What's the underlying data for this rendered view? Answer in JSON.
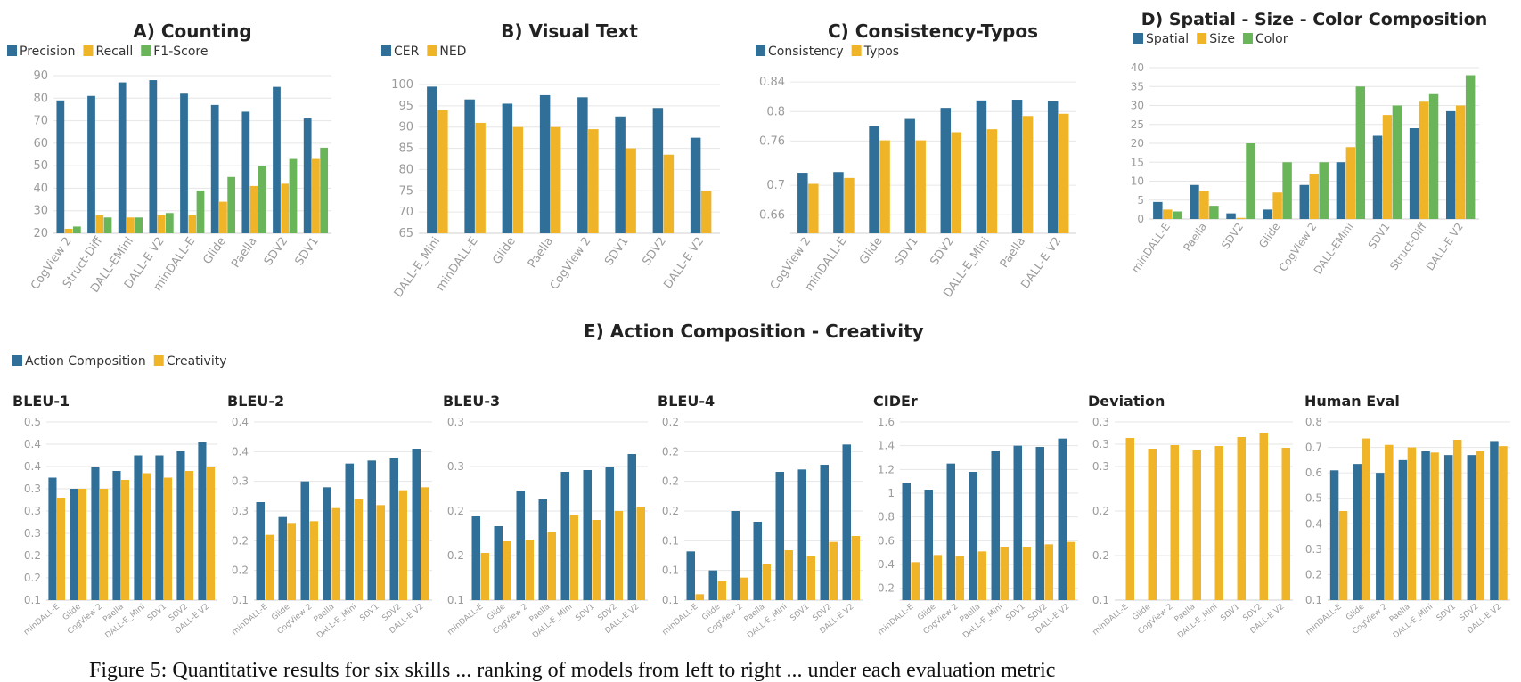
{
  "colors": {
    "blue": "#2f6f98",
    "yellow": "#f0b429",
    "green": "#6ab45a"
  },
  "section_e_title": "E) Action Composition - Creativity",
  "caption": "Figure 5: Quantitative results for six skills ... ranking of models from left to right ... under each evaluation metric",
  "chart_data": [
    {
      "id": "A",
      "type": "bar",
      "title": "A) Counting",
      "series_names": [
        "Precision",
        "Recall",
        "F1-Score"
      ],
      "categories": [
        "CogView 2",
        "Struct-Diff",
        "DALL-EMini",
        "DALL-E V2",
        "minDALL-E",
        "Glide",
        "Paella",
        "SDV2",
        "SDV1"
      ],
      "series": [
        [
          79,
          81,
          87,
          88,
          82,
          77,
          74,
          85,
          71
        ],
        [
          22,
          28,
          27,
          28,
          28,
          34,
          41,
          42,
          53
        ],
        [
          23,
          27,
          27,
          29,
          39,
          45,
          50,
          53,
          58
        ]
      ],
      "ylim": [
        20,
        90
      ],
      "ticks": [
        20,
        30,
        40,
        50,
        60,
        70,
        80,
        90
      ]
    },
    {
      "id": "B",
      "type": "bar",
      "title": "B) Visual Text",
      "series_names": [
        "CER",
        "NED"
      ],
      "categories": [
        "DALL-E_Mini",
        "minDALL-E",
        "Glide",
        "Paella",
        "CogView 2",
        "SDV1",
        "SDV2",
        "DALL-E V2"
      ],
      "series": [
        [
          99.5,
          96.5,
          95.5,
          97.5,
          97,
          92.5,
          94.5,
          87.5
        ],
        [
          94,
          91,
          90,
          90,
          89.5,
          85,
          83.5,
          75
        ]
      ],
      "ylim": [
        65,
        100
      ],
      "ticks": [
        65,
        70,
        75,
        80,
        85,
        90,
        95,
        100
      ]
    },
    {
      "id": "C",
      "type": "bar",
      "title": "C) Consistency-Typos",
      "series_names": [
        "Consistency",
        "Typos"
      ],
      "categories": [
        "CogView 2",
        "minDALL-E",
        "Glide",
        "SDV1",
        "SDV2",
        "DALL-E_Mini",
        "Paella",
        "DALL-E V2"
      ],
      "series": [
        [
          0.717,
          0.718,
          0.78,
          0.79,
          0.805,
          0.815,
          0.816,
          0.814
        ],
        [
          0.702,
          0.71,
          0.761,
          0.761,
          0.772,
          0.776,
          0.794,
          0.797
        ]
      ],
      "ylim": [
        0.635,
        0.845
      ],
      "ticks": [
        0.66,
        0.7,
        0.76,
        0.8,
        0.84
      ],
      "tick_labels": [
        "0.66",
        "0.7",
        "0.76",
        "0.8",
        "0.84"
      ]
    },
    {
      "id": "D",
      "type": "bar",
      "title": "D) Spatial - Size - Color Composition",
      "series_names": [
        "Spatial",
        "Size",
        "Color"
      ],
      "categories": [
        "minDALL-E",
        "Paella",
        "SDV2",
        "Glide",
        "CogView 2",
        "DALL-EMini",
        "SDV1",
        "Struct-Diff",
        "DALL-E V2"
      ],
      "series": [
        [
          4.5,
          9,
          1.5,
          2.5,
          9,
          15,
          22,
          24,
          28.5
        ],
        [
          2.5,
          7.5,
          0.3,
          7,
          12,
          19,
          27.5,
          31,
          30
        ],
        [
          2,
          3.5,
          20,
          15,
          15,
          35,
          30,
          33,
          38
        ]
      ],
      "ylim": [
        0,
        40
      ],
      "ticks": [
        0,
        5,
        10,
        15,
        20,
        25,
        30,
        35,
        40
      ]
    },
    {
      "id": "E1",
      "type": "bar",
      "title": "BLEU-1",
      "group": "E",
      "series_names": [
        "Action Composition",
        "Creativity"
      ],
      "categories": [
        "minDALL-E",
        "Glide",
        "CogView 2",
        "Paella",
        "DALL-E_Mini",
        "SDV1",
        "SDV2",
        "DALL-E V2"
      ],
      "series": [
        [
          0.375,
          0.35,
          0.4,
          0.39,
          0.425,
          0.425,
          0.435,
          0.455
        ],
        [
          0.33,
          0.35,
          0.35,
          0.37,
          0.385,
          0.375,
          0.39,
          0.4
        ]
      ],
      "ylim": [
        0.1,
        0.5
      ],
      "ticks": [
        0.1,
        0.15,
        0.2,
        0.25,
        0.3,
        0.35,
        0.4,
        0.45,
        0.5
      ],
      "tick_labels": [
        "0.1",
        "0.2",
        "0.2",
        "0.3",
        "0.3",
        "0.3",
        "0.4",
        "0.4",
        "0.5"
      ]
    },
    {
      "id": "E2",
      "type": "bar",
      "title": "BLEU-2",
      "group": "E",
      "series_names": [
        "Action Composition",
        "Creativity"
      ],
      "categories": [
        "minDALL-E",
        "Glide",
        "CogView 2",
        "Paella",
        "DALL-E_Mini",
        "SDV1",
        "SDV2",
        "DALL-E V2"
      ],
      "series": [
        [
          0.265,
          0.24,
          0.3,
          0.29,
          0.33,
          0.335,
          0.34,
          0.355
        ],
        [
          0.21,
          0.23,
          0.233,
          0.255,
          0.27,
          0.26,
          0.285,
          0.29
        ]
      ],
      "ylim": [
        0.1,
        0.4
      ],
      "ticks": [
        0.1,
        0.15,
        0.2,
        0.25,
        0.3,
        0.35,
        0.4
      ],
      "tick_labels": [
        "0.1",
        "0.2",
        "0.2",
        "0.3",
        "0.3",
        "0.4",
        "0.4"
      ]
    },
    {
      "id": "E3",
      "type": "bar",
      "title": "BLEU-3",
      "group": "E",
      "series_names": [
        "Action Composition",
        "Creativity"
      ],
      "categories": [
        "minDALL-E",
        "Glide",
        "CogView 2",
        "Paella",
        "DALL-E_Mini",
        "SDV1",
        "SDV2",
        "DALL-E V2"
      ],
      "series": [
        [
          0.194,
          0.183,
          0.223,
          0.213,
          0.244,
          0.246,
          0.249,
          0.264
        ],
        [
          0.153,
          0.166,
          0.168,
          0.177,
          0.196,
          0.19,
          0.2,
          0.205
        ]
      ],
      "ylim": [
        0.1,
        0.3
      ],
      "ticks": [
        0.1,
        0.15,
        0.2,
        0.25,
        0.3
      ],
      "tick_labels": [
        "0.1",
        "0.2",
        "0.2",
        "0.3",
        "0.3"
      ]
    },
    {
      "id": "E4",
      "type": "bar",
      "title": "BLEU-4",
      "group": "E",
      "series_names": [
        "Action Composition",
        "Creativity"
      ],
      "categories": [
        "minDALL-E",
        "Glide",
        "CogView 2",
        "Paella",
        "DALL-E_Mini",
        "SDV1",
        "SDV2",
        "DALL-E V2"
      ],
      "series": [
        [
          0.141,
          0.125,
          0.175,
          0.166,
          0.208,
          0.21,
          0.214,
          0.231
        ],
        [
          0.105,
          0.116,
          0.119,
          0.13,
          0.142,
          0.137,
          0.149,
          0.154
        ]
      ],
      "ylim": [
        0.1,
        0.25
      ],
      "ticks": [
        0.1,
        0.125,
        0.15,
        0.175,
        0.2,
        0.225,
        0.25
      ],
      "tick_labels": [
        "0.1",
        "0.1",
        "0.1",
        "0.2",
        "0.2",
        "0.2",
        "0.2"
      ]
    },
    {
      "id": "E5",
      "type": "bar",
      "title": "CIDEr",
      "group": "E",
      "series_names": [
        "Action Composition",
        "Creativity"
      ],
      "categories": [
        "minDALL-E",
        "Glide",
        "CogView 2",
        "Paella",
        "DALL-E_Mini",
        "SDV1",
        "SDV2",
        "DALL-E V2"
      ],
      "series": [
        [
          1.09,
          1.03,
          1.25,
          1.18,
          1.36,
          1.4,
          1.39,
          1.46
        ],
        [
          0.42,
          0.48,
          0.47,
          0.51,
          0.55,
          0.55,
          0.57,
          0.59
        ]
      ],
      "ylim": [
        0.1,
        1.6
      ],
      "ticks": [
        0.2,
        0.4,
        0.6,
        0.8,
        1.0,
        1.2,
        1.4,
        1.6
      ],
      "tick_labels": [
        "0.2",
        "0.4",
        "0.6",
        "0.8",
        "1",
        "1.2",
        "1.4",
        "1.6"
      ]
    },
    {
      "id": "E6",
      "type": "bar",
      "title": "Deviation",
      "group": "E",
      "series_names": [
        "Action Composition",
        "Creativity"
      ],
      "categories": [
        "minDALL-E",
        "Glide",
        "CogView 2",
        "Paella",
        "DALL-E_Mini",
        "SDV1",
        "SDV2",
        "DALL-E V2"
      ],
      "series": [
        [
          0,
          0,
          0,
          0,
          0,
          0,
          0,
          0
        ],
        [
          0.282,
          0.27,
          0.274,
          0.269,
          0.273,
          0.283,
          0.288,
          0.271
        ]
      ],
      "ylim": [
        0.1,
        0.3
      ],
      "ticks": [
        0.1,
        0.15,
        0.2,
        0.25,
        0.275,
        0.3
      ],
      "tick_labels": [
        "0.1",
        "0.2",
        "0.2",
        "0.3",
        "0.3",
        "0.3"
      ]
    },
    {
      "id": "E7",
      "type": "bar",
      "title": "Human Eval",
      "group": "E",
      "series_names": [
        "Action Composition",
        "Creativity"
      ],
      "categories": [
        "minDALL-E",
        "Glide",
        "CogView 2",
        "Paella",
        "DALL-E_Mini",
        "SDV1",
        "SDV2",
        "DALL-E V2"
      ],
      "series": [
        [
          0.61,
          0.635,
          0.6,
          0.65,
          0.685,
          0.67,
          0.67,
          0.725
        ],
        [
          0.45,
          0.735,
          0.71,
          0.7,
          0.68,
          0.73,
          0.685,
          0.705
        ]
      ],
      "ylim": [
        0.1,
        0.8
      ],
      "ticks": [
        0.1,
        0.2,
        0.3,
        0.4,
        0.5,
        0.6,
        0.7,
        0.8
      ],
      "tick_labels": [
        "0.1",
        "0.2",
        "0.3",
        "0.4",
        "0.5",
        "0.6",
        "0.7",
        "0.8"
      ]
    }
  ]
}
